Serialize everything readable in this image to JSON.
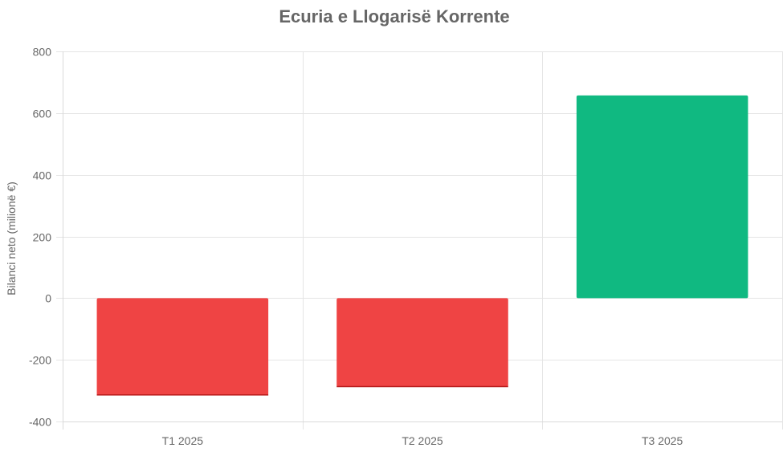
{
  "chart_data": {
    "type": "bar",
    "title": "Ecuria e Llogarisë Korrente",
    "xlabel": "",
    "ylabel": "Bilanci neto (milionë €)",
    "categories": [
      "T1 2025",
      "T2 2025",
      "T3 2025"
    ],
    "values": [
      -315,
      -288,
      657
    ],
    "ylim": [
      -400,
      800
    ],
    "yticks": [
      800,
      600,
      400,
      200,
      0,
      -200,
      -400
    ],
    "grid": true,
    "legend": "none",
    "colors": {
      "negative": "#ef4444",
      "positive": "#10b981"
    }
  }
}
